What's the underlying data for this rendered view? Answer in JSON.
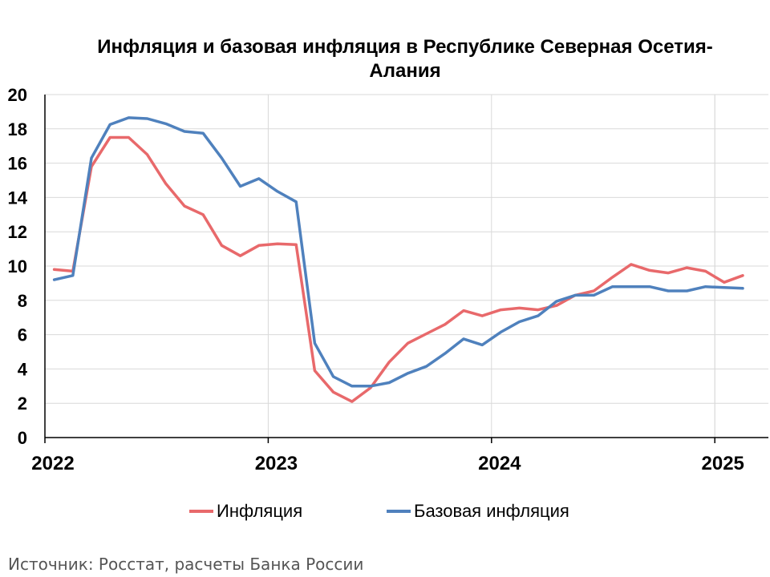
{
  "chart_data": {
    "type": "line",
    "title": "Инфляция и базовая инфляция в Республике Северная Осетия-Алания",
    "x_tick_labels": [
      "2022",
      "2023",
      "2024",
      "2025"
    ],
    "ylim": [
      0,
      20
    ],
    "y_ticks": [
      "0",
      "2",
      "4",
      "6",
      "8",
      "10",
      "12",
      "14",
      "16",
      "18",
      "20"
    ],
    "grid": "horizontal and vertical",
    "legend_position": "bottom",
    "x_period": "monthly, January 2022 – February 2025",
    "x": [
      "2022-01",
      "2022-02",
      "2022-03",
      "2022-04",
      "2022-05",
      "2022-06",
      "2022-07",
      "2022-08",
      "2022-09",
      "2022-10",
      "2022-11",
      "2022-12",
      "2023-01",
      "2023-02",
      "2023-03",
      "2023-04",
      "2023-05",
      "2023-06",
      "2023-07",
      "2023-08",
      "2023-09",
      "2023-10",
      "2023-11",
      "2023-12",
      "2024-01",
      "2024-02",
      "2024-03",
      "2024-04",
      "2024-05",
      "2024-06",
      "2024-07",
      "2024-08",
      "2024-09",
      "2024-10",
      "2024-11",
      "2024-12",
      "2025-01",
      "2025-02"
    ],
    "series": [
      {
        "name": "Инфляция",
        "color": "#E8696B",
        "values": [
          9.8,
          9.7,
          15.8,
          17.5,
          17.5,
          16.5,
          14.8,
          13.5,
          13.0,
          11.2,
          10.6,
          11.2,
          11.3,
          11.25,
          3.9,
          2.65,
          2.1,
          2.9,
          4.4,
          5.5,
          6.05,
          6.6,
          7.4,
          7.1,
          7.45,
          7.55,
          7.45,
          7.7,
          8.3,
          8.55,
          9.35,
          10.1,
          9.75,
          9.6,
          9.9,
          9.7,
          9.05,
          9.45
        ]
      },
      {
        "name": "Базовая инфляция",
        "color": "#4F81BD",
        "values": [
          9.2,
          9.45,
          16.3,
          18.25,
          18.65,
          18.6,
          18.3,
          17.85,
          17.75,
          16.3,
          14.65,
          15.1,
          14.35,
          13.75,
          5.5,
          3.55,
          3.0,
          3.0,
          3.2,
          3.75,
          4.15,
          4.9,
          5.75,
          5.4,
          6.15,
          6.75,
          7.1,
          7.95,
          8.3,
          8.3,
          8.8,
          8.8,
          8.8,
          8.55,
          8.55,
          8.8,
          8.75,
          8.7
        ]
      }
    ]
  },
  "legend": {
    "inflation_label": "Инфляция",
    "core_label": "Базовая инфляция"
  },
  "source": "Источник: Росстат, расчеты Банка России"
}
